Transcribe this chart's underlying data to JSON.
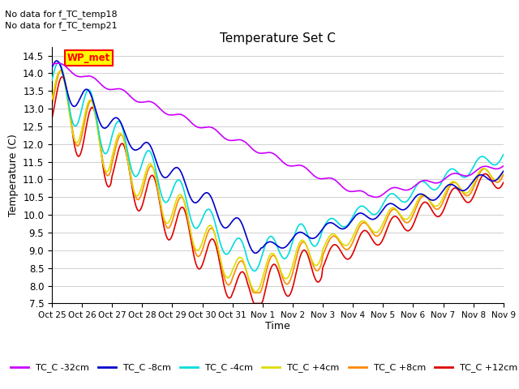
{
  "title": "Temperature Set C",
  "ylabel": "Temperature (C)",
  "xlabel": "Time",
  "ylim": [
    7.5,
    14.75
  ],
  "no_data_text": [
    "No data for f_TC_temp18",
    "No data for f_TC_temp21"
  ],
  "wp_met_label": "WP_met",
  "legend_entries": [
    "TC_C -32cm",
    "TC_C -8cm",
    "TC_C -4cm",
    "TC_C +4cm",
    "TC_C +8cm",
    "TC_C +12cm"
  ],
  "line_colors": [
    "#cc00ff",
    "#0000cc",
    "#00dddd",
    "#dddd00",
    "#ff8800",
    "#dd0000"
  ],
  "line_widths": [
    1.2,
    1.2,
    1.2,
    1.2,
    1.2,
    1.2
  ],
  "x_tick_labels": [
    "Oct 25",
    "Oct 26",
    "Oct 27",
    "Oct 28",
    "Oct 29",
    "Oct 30",
    "Oct 31",
    "Nov 1",
    "Nov 2",
    "Nov 3",
    "Nov 4",
    "Nov 5",
    "Nov 6",
    "Nov 7",
    "Nov 8",
    "Nov 9"
  ],
  "yticks": [
    7.5,
    8.0,
    8.5,
    9.0,
    9.5,
    10.0,
    10.5,
    11.0,
    11.5,
    12.0,
    12.5,
    13.0,
    13.5,
    14.0,
    14.5
  ],
  "figsize": [
    6.4,
    4.8
  ],
  "dpi": 100
}
